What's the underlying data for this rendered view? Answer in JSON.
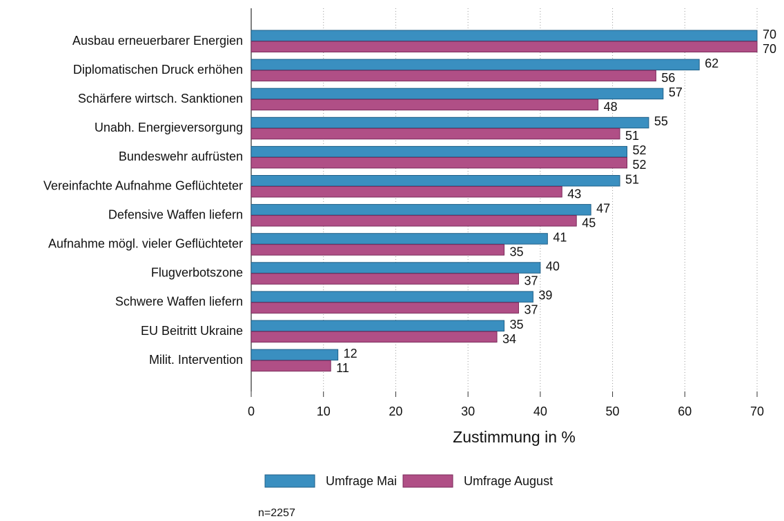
{
  "chart_data": {
    "type": "bar",
    "orientation": "horizontal",
    "categories": [
      "Ausbau erneuerbarer Energien",
      "Diplomatischen Druck erhöhen",
      "Schärfere wirtsch. Sanktionen",
      "Unabh. Energieversorgung",
      "Bundeswehr aufrüsten",
      "Vereinfachte Aufnahme Geflüchteter",
      "Defensive Waffen liefern",
      "Aufnahme mögl. vieler Geflüchteter",
      "Flugverbotszone",
      "Schwere Waffen liefern",
      "EU Beitritt Ukraine",
      "Milit. Intervention"
    ],
    "series": [
      {
        "name": "Umfrage Mai",
        "color": "#3a8fc0",
        "values": [
          70,
          62,
          57,
          55,
          52,
          51,
          47,
          41,
          40,
          39,
          35,
          12
        ]
      },
      {
        "name": "Umfrage August",
        "color": "#b04f86",
        "values": [
          70,
          56,
          48,
          51,
          52,
          43,
          45,
          35,
          37,
          37,
          34,
          11
        ]
      }
    ],
    "xlabel": "Zustimmung in %",
    "xlim": [
      0,
      70
    ],
    "xticks": [
      0,
      10,
      20,
      30,
      40,
      50,
      60,
      70
    ],
    "grid": true,
    "legend": "bottom",
    "note": "n=2257"
  }
}
